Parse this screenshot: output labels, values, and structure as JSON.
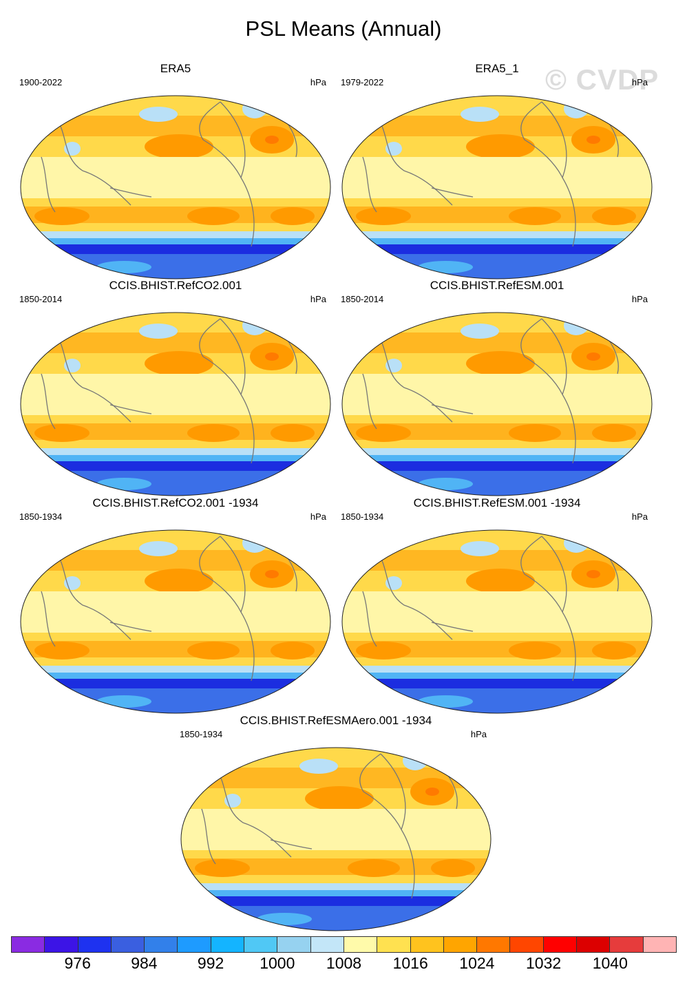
{
  "title": "PSL Means (Annual)",
  "watermark": "© CVDP",
  "panels": [
    {
      "title": "ERA5",
      "period": "1900-2022",
      "units": "hPa"
    },
    {
      "title": "ERA5_1",
      "period": "1979-2022",
      "units": "hPa"
    },
    {
      "title": "CCIS.BHIST.RefCO2.001",
      "period": "1850-2014",
      "units": "hPa"
    },
    {
      "title": "CCIS.BHIST.RefESM.001",
      "period": "1850-2014",
      "units": "hPa"
    },
    {
      "title": "CCIS.BHIST.RefCO2.001 -1934",
      "period": "1850-1934",
      "units": "hPa"
    },
    {
      "title": "CCIS.BHIST.RefESM.001 -1934",
      "period": "1850-1934",
      "units": "hPa"
    },
    {
      "title": "CCIS.BHIST.RefESMAero.001 -1934",
      "period": "1850-1934",
      "units": "hPa"
    }
  ],
  "colorbar": {
    "colors": [
      "#8a2be2",
      "#3c14e6",
      "#1e32f0",
      "#3a5fe0",
      "#3280ea",
      "#1e9bff",
      "#14b4ff",
      "#50c8f5",
      "#96d2f0",
      "#c3e6f8",
      "#fffaaa",
      "#ffe150",
      "#ffc31e",
      "#ffa500",
      "#ff7800",
      "#ff4600",
      "#ff0000",
      "#dc0000",
      "#e63c3c",
      "#ffb4b4"
    ],
    "labels": [
      "976",
      "984",
      "992",
      "1000",
      "1008",
      "1016",
      "1024",
      "1032",
      "1040"
    ]
  },
  "map_colors": {
    "land_outline": "#777777",
    "low_blue": "#3b6fe8",
    "deep_blue": "#1b2de0",
    "mid_blue": "#50b4f5",
    "light_blue": "#b9e0f7",
    "pale_yellow": "#fff6a8",
    "yellow": "#ffd94a",
    "orange": "#ffb31e",
    "dark_orange": "#ff9a00",
    "red_orange": "#ff7a00"
  }
}
